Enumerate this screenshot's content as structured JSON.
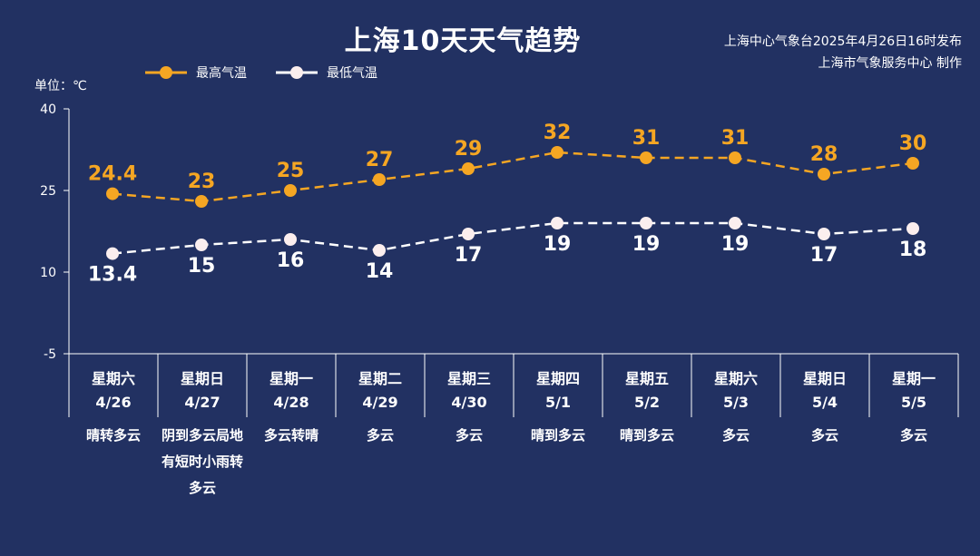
{
  "title": "上海10天天气趋势",
  "publisher": {
    "line1": "上海中心气象台2025年4月26日16时发布",
    "line2": "上海市气象服务中心 制作"
  },
  "unit_label": "单位：℃",
  "chart_data": {
    "type": "line",
    "y_ticks": [
      40,
      25,
      10,
      -5
    ],
    "ylim": [
      -5,
      40
    ],
    "categories": [
      "4/26",
      "4/27",
      "4/28",
      "4/29",
      "4/30",
      "5/1",
      "5/2",
      "5/3",
      "5/4",
      "5/5"
    ],
    "weekdays": [
      "星期六",
      "星期日",
      "星期一",
      "星期二",
      "星期三",
      "星期四",
      "星期五",
      "星期六",
      "星期日",
      "星期一"
    ],
    "weather": [
      "晴转多云",
      "阴到多云局地有短时小雨转多云",
      "多云转晴",
      "多云",
      "多云",
      "晴到多云",
      "晴到多云",
      "多云",
      "多云",
      "多云"
    ],
    "series": [
      {
        "name": "最高气温",
        "color": "#f5a623",
        "values": [
          24.4,
          23,
          25,
          27,
          29,
          32,
          31,
          31,
          28,
          30
        ],
        "labels": [
          "24.4",
          "23",
          "25",
          "27",
          "29",
          "32",
          "31",
          "31",
          "28",
          "30"
        ]
      },
      {
        "name": "最低气温",
        "color": "#ffffff",
        "values": [
          13.4,
          15,
          16,
          14,
          17,
          19,
          19,
          19,
          17,
          18
        ],
        "labels": [
          "13.4",
          "15",
          "16",
          "14",
          "17",
          "19",
          "19",
          "19",
          "17",
          "18"
        ]
      }
    ]
  }
}
